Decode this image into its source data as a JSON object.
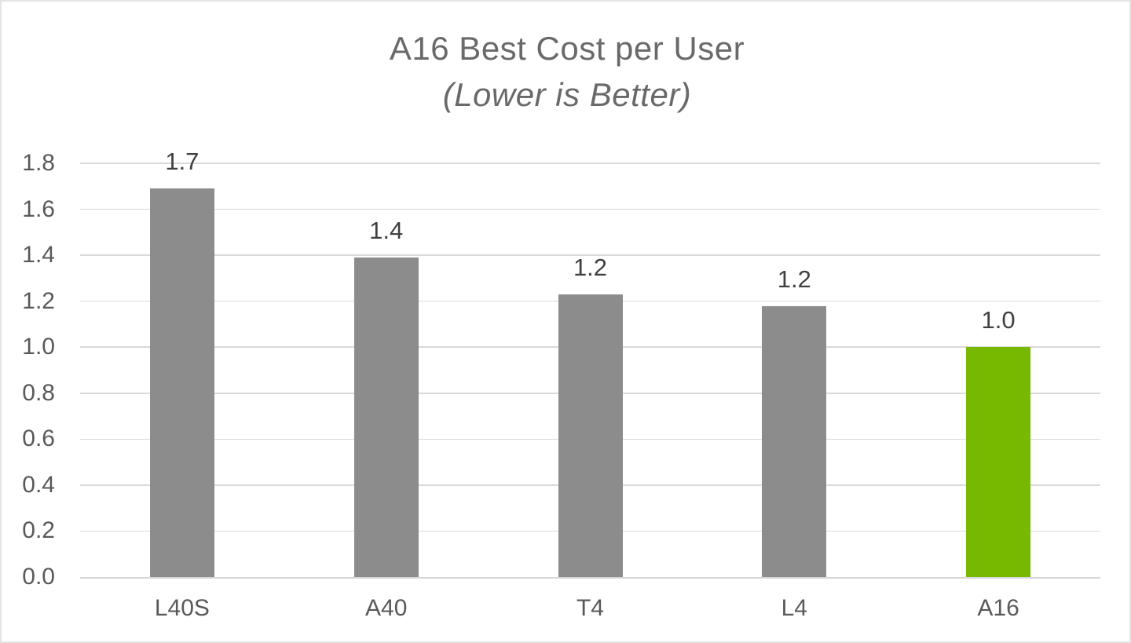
{
  "chart_data": {
    "type": "bar",
    "title": "A16 Best Cost per User",
    "subtitle": "(Lower is Better)",
    "categories": [
      "L40S",
      "A40",
      "T4",
      "L4",
      "A16"
    ],
    "values": [
      1.69,
      1.39,
      1.23,
      1.18,
      1.0
    ],
    "value_labels": [
      "1.7",
      "1.4",
      "1.2",
      "1.2",
      "1.0"
    ],
    "bar_colors": [
      "#8C8C8C",
      "#8C8C8C",
      "#8C8C8C",
      "#8C8C8C",
      "#76B900"
    ],
    "highlight_category": "A16",
    "ylim": [
      0.0,
      1.8
    ],
    "ytick_step": 0.2,
    "ytick_labels": [
      "0.0",
      "0.2",
      "0.4",
      "0.6",
      "0.8",
      "1.0",
      "1.2",
      "1.4",
      "1.6",
      "1.8"
    ],
    "xlabel": "",
    "ylabel": "",
    "grid": "horizontal",
    "legend": "none",
    "colors": {
      "bar_default": "#8C8C8C",
      "bar_highlight": "#76B900",
      "gridline": "#D9D9D9",
      "title_text": "#696969",
      "value_label_text": "#404040",
      "axis_tick_text": "#595959",
      "background": "#FFFFFF"
    }
  }
}
